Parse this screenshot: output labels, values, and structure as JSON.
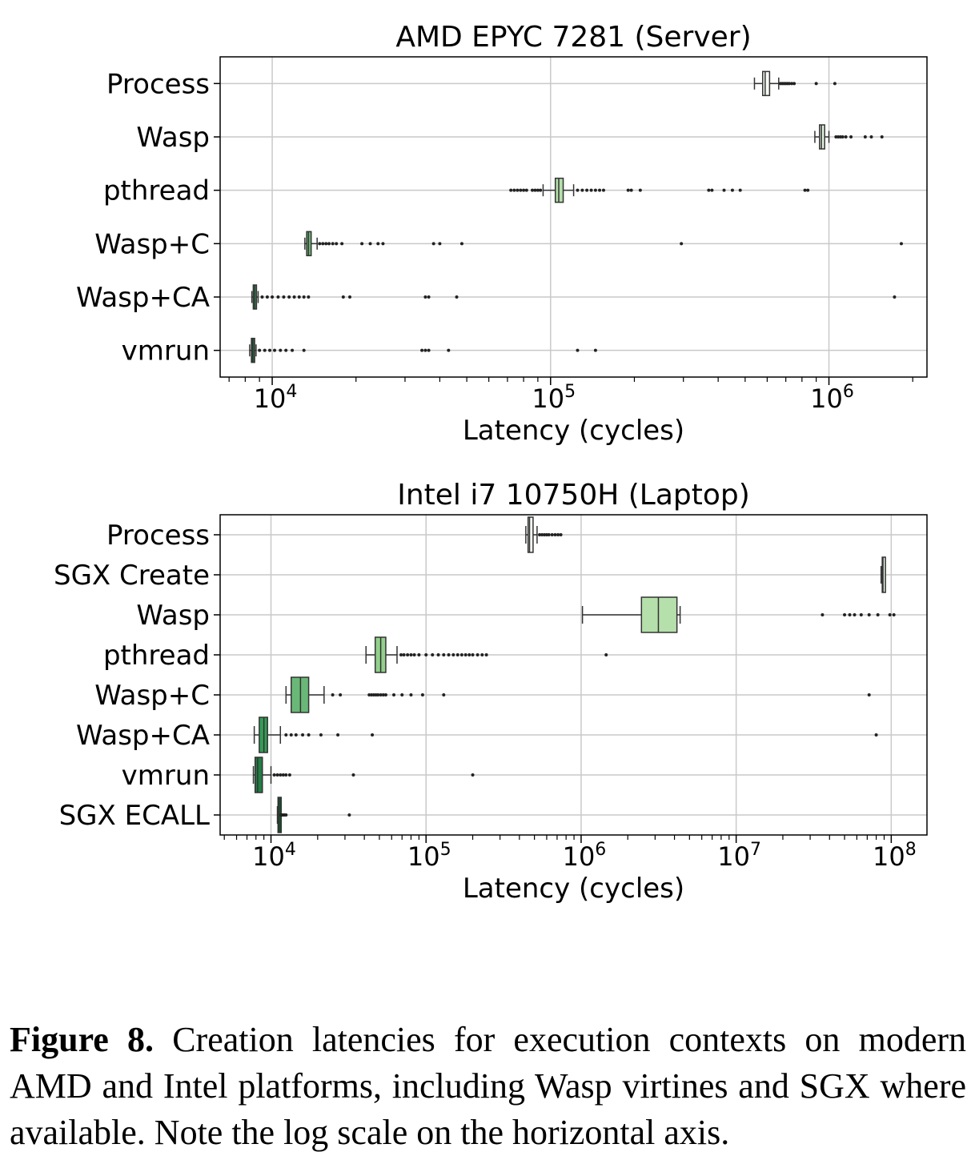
{
  "chart_data": [
    {
      "type": "box",
      "title": "AMD EPYC 7281 (Server)",
      "xlabel": "Latency (cycles)",
      "x_scale": "log",
      "xlim": [
        6500,
        2250000
      ],
      "xticks": [
        10000,
        100000,
        1000000
      ],
      "xtick_labels": [
        {
          "base": "10",
          "exp": "4"
        },
        {
          "base": "10",
          "exp": "5"
        },
        {
          "base": "10",
          "exp": "6"
        }
      ],
      "grid": true,
      "categories": [
        "Process",
        "Wasp",
        "pthread",
        "Wasp+C",
        "Wasp+CA",
        "vmrun"
      ],
      "colors": [
        "#f6fbf4",
        "#e4f4df",
        "#b4dfa9",
        "#6fbf79",
        "#329b56",
        "#1c6e3b"
      ],
      "boxes": [
        {
          "name": "Process",
          "whislo": 540000,
          "q1": 578000,
          "med": 590000,
          "q3": 612000,
          "whishi": 660000,
          "fliers": [
            670000,
            680000,
            690000,
            700000,
            710000,
            720000,
            735000,
            750000,
            900000,
            1050000
          ]
        },
        {
          "name": "Wasp",
          "whislo": 890000,
          "q1": 925000,
          "med": 940000,
          "q3": 965000,
          "whishi": 1000000,
          "fliers": [
            1060000,
            1080000,
            1100000,
            1120000,
            1150000,
            1200000,
            1350000,
            1420000,
            1550000
          ]
        },
        {
          "name": "pthread",
          "whislo": 94000,
          "q1": 104000,
          "med": 107000,
          "q3": 111000,
          "whishi": 121000,
          "fliers": [
            72000,
            74000,
            76000,
            78000,
            80000,
            82000,
            86000,
            88000,
            90000,
            92000,
            125000,
            130000,
            135000,
            140000,
            145000,
            150000,
            155000,
            190000,
            195000,
            210000,
            370000,
            380000,
            420000,
            450000,
            480000,
            820000,
            840000
          ]
        },
        {
          "name": "Wasp+C",
          "whislo": 13100,
          "q1": 13300,
          "med": 13500,
          "q3": 13800,
          "whishi": 14500,
          "fliers": [
            14800,
            15200,
            15600,
            16000,
            16500,
            17000,
            17800,
            21000,
            22500,
            24000,
            25000,
            38000,
            40000,
            48000,
            295000,
            1820000
          ]
        },
        {
          "name": "Wasp+CA",
          "whislo": 8450,
          "q1": 8550,
          "med": 8650,
          "q3": 8750,
          "whishi": 8900,
          "fliers": [
            9200,
            9600,
            10000,
            10500,
            11000,
            11500,
            12000,
            12500,
            13000,
            13500,
            18000,
            19000,
            35500,
            36500,
            46000,
            1720000
          ]
        },
        {
          "name": "vmrun",
          "whislo": 8300,
          "q1": 8420,
          "med": 8500,
          "q3": 8600,
          "whishi": 8750,
          "fliers": [
            9000,
            9400,
            9800,
            10200,
            10700,
            11200,
            11800,
            13000,
            34500,
            35500,
            36500,
            43000,
            125000,
            145000
          ]
        }
      ]
    },
    {
      "type": "box",
      "title": "Intel i7 10750H (Laptop)",
      "xlabel": "Latency (cycles)",
      "x_scale": "log",
      "xlim": [
        4700,
        170000000
      ],
      "xticks": [
        10000,
        100000,
        1000000,
        10000000,
        100000000
      ],
      "xtick_labels": [
        {
          "base": "10",
          "exp": "4"
        },
        {
          "base": "10",
          "exp": "5"
        },
        {
          "base": "10",
          "exp": "6"
        },
        {
          "base": "10",
          "exp": "7"
        },
        {
          "base": "10",
          "exp": "8"
        }
      ],
      "grid": true,
      "categories": [
        "Process",
        "SGX Create",
        "Wasp",
        "pthread",
        "Wasp+C",
        "Wasp+CA",
        "vmrun",
        "SGX ECALL"
      ],
      "colors": [
        "#f7fcf5",
        "#e6f5e1",
        "#b5e0ab",
        "#92d08c",
        "#6ab877",
        "#349c57",
        "#237d45",
        "#12552b"
      ],
      "boxes": [
        {
          "name": "Process",
          "whislo": 440000,
          "q1": 455000,
          "med": 465000,
          "q3": 490000,
          "whishi": 520000,
          "fliers": [
            540000,
            560000,
            580000,
            600000,
            620000,
            650000,
            680000,
            710000,
            740000
          ]
        },
        {
          "name": "SGX Create",
          "whislo": 86000000,
          "q1": 87500000,
          "med": 88500000,
          "q3": 89500000,
          "whishi": 91000000,
          "fliers": []
        },
        {
          "name": "Wasp",
          "whislo": 1020000,
          "q1": 2450000,
          "med": 3150000,
          "q3": 4150000,
          "whishi": 4350000,
          "fliers": [
            36000000,
            50000000,
            54000000,
            58000000,
            64000000,
            72000000,
            82000000,
            98000000,
            104000000
          ]
        },
        {
          "name": "pthread",
          "whislo": 41000,
          "q1": 47000,
          "med": 51000,
          "q3": 55000,
          "whishi": 65000,
          "fliers": [
            69000,
            72000,
            76000,
            80000,
            84000,
            90000,
            100000,
            110000,
            120000,
            130000,
            140000,
            150000,
            160000,
            170000,
            180000,
            190000,
            200000,
            215000,
            230000,
            245000,
            1450000
          ]
        },
        {
          "name": "Wasp+C",
          "whislo": 12500,
          "q1": 13500,
          "med": 15500,
          "q3": 17500,
          "whishi": 22000,
          "fliers": [
            25000,
            28000,
            43000,
            44500,
            46000,
            47500,
            49000,
            51000,
            53000,
            55000,
            62000,
            70000,
            80000,
            95000,
            130000,
            72000000
          ]
        },
        {
          "name": "Wasp+CA",
          "whislo": 7800,
          "q1": 8400,
          "med": 9000,
          "q3": 9500,
          "whishi": 11500,
          "fliers": [
            12500,
            13500,
            14500,
            16000,
            17500,
            21000,
            27000,
            45000,
            80000000
          ]
        },
        {
          "name": "vmrun",
          "whislo": 7700,
          "q1": 7900,
          "med": 8200,
          "q3": 8800,
          "whishi": 10000,
          "fliers": [
            10500,
            11000,
            11500,
            12000,
            12500,
            13200,
            34000,
            200000
          ]
        },
        {
          "name": "SGX ECALL",
          "whislo": 11000,
          "q1": 11100,
          "med": 11200,
          "q3": 11300,
          "whishi": 11400,
          "fliers": [
            11600,
            11800,
            12000,
            12200,
            12500,
            32000
          ]
        }
      ]
    }
  ],
  "caption": {
    "label": "Figure 8.",
    "text": "Creation latencies for execution contexts on modern AMD and Intel platforms, including Wasp virtines and SGX where available. Note the log scale on the horizontal axis."
  }
}
